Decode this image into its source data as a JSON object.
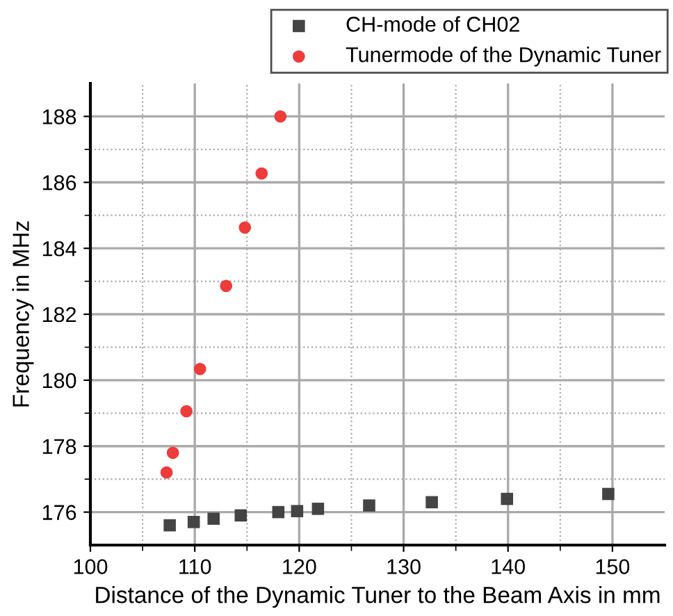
{
  "chart_data": {
    "type": "scatter",
    "xlabel": "Distance of the Dynamic Tuner to the Beam Axis in mm",
    "ylabel": "Frequency in MHz",
    "series": [
      {
        "name": "CH-mode of CH02",
        "color": "#444444",
        "marker": "square",
        "x": [
          107.6,
          109.9,
          111.8,
          114.4,
          118.0,
          119.8,
          121.8,
          126.7,
          132.7,
          139.9,
          149.6
        ],
        "values": [
          175.6,
          175.7,
          175.8,
          175.9,
          176.0,
          176.03,
          176.1,
          176.2,
          176.3,
          176.4,
          176.55
        ]
      },
      {
        "name": "Tunermode of the Dynamic Tuner",
        "color": "#ee3b3b",
        "marker": "circle",
        "x": [
          107.3,
          107.9,
          109.2,
          110.5,
          113.0,
          114.8,
          116.4,
          118.2
        ],
        "values": [
          177.2,
          177.8,
          179.06,
          180.34,
          182.86,
          184.63,
          186.27,
          188.0
        ]
      }
    ],
    "xlim": [
      100,
      155
    ],
    "xticks": [
      100,
      110,
      120,
      130,
      140,
      150
    ],
    "ylim": [
      175,
      189
    ],
    "yticks": [
      176,
      178,
      180,
      182,
      184,
      186,
      188
    ],
    "grid": true,
    "legend": "top"
  }
}
